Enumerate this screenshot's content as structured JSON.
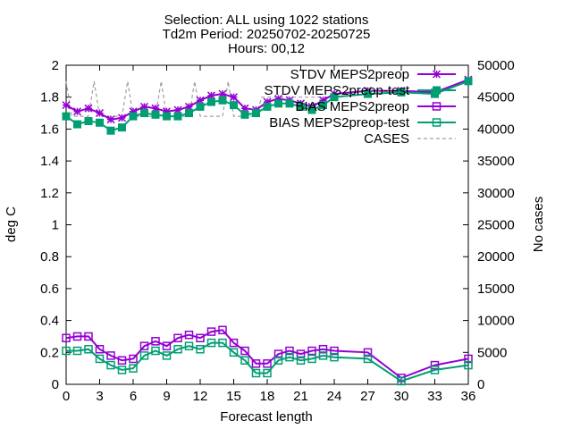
{
  "chart_data": {
    "type": "line",
    "title_lines": [
      "Selection: ALL using  1022 stations",
      "Td2m    Period: 20250702-20250725",
      "Hours: 00,12"
    ],
    "xlabel": "Forecast length",
    "ylabel": "deg C",
    "y2label": "No cases",
    "xlim": [
      0,
      36
    ],
    "ylim": [
      0,
      2
    ],
    "y2lim": [
      0,
      50000
    ],
    "xticks": [
      0,
      3,
      6,
      9,
      12,
      15,
      18,
      21,
      24,
      27,
      30,
      33,
      36
    ],
    "yticks": [
      0,
      0.2,
      0.4,
      0.6,
      0.8,
      1,
      1.2,
      1.4,
      1.6,
      1.8,
      2
    ],
    "y2ticks": [
      0,
      5000,
      10000,
      15000,
      20000,
      25000,
      30000,
      35000,
      40000,
      45000,
      50000
    ],
    "legend_position": "top-right",
    "grid": false,
    "x": [
      0,
      1,
      2,
      3,
      4,
      5,
      6,
      7,
      8,
      9,
      10,
      11,
      12,
      13,
      14,
      15,
      16,
      17,
      18,
      19,
      20,
      21,
      22,
      23,
      24,
      27,
      30,
      33,
      36
    ],
    "series": [
      {
        "name": "STDV MEPS2preop",
        "axis": "y1",
        "color": "#9400d3",
        "marker": "star",
        "values": [
          1.75,
          1.71,
          1.73,
          1.7,
          1.66,
          1.67,
          1.71,
          1.74,
          1.73,
          1.71,
          1.72,
          1.74,
          1.78,
          1.81,
          1.82,
          1.8,
          1.73,
          1.72,
          1.77,
          1.79,
          1.78,
          1.76,
          1.74,
          1.78,
          1.82,
          1.84,
          1.84,
          1.83,
          1.91
        ]
      },
      {
        "name": "STDV MEPS2preop-test",
        "axis": "y1",
        "color": "#009e73",
        "marker": "filled-square",
        "values": [
          1.68,
          1.63,
          1.65,
          1.64,
          1.59,
          1.61,
          1.68,
          1.7,
          1.69,
          1.68,
          1.68,
          1.7,
          1.74,
          1.77,
          1.78,
          1.75,
          1.69,
          1.7,
          1.74,
          1.76,
          1.76,
          1.74,
          1.72,
          1.75,
          1.8,
          1.82,
          1.83,
          1.82,
          1.9
        ]
      },
      {
        "name": "BIAS MEPS2preop",
        "axis": "y1",
        "color": "#9400d3",
        "marker": "open-square",
        "values": [
          0.29,
          0.3,
          0.3,
          0.22,
          0.18,
          0.15,
          0.16,
          0.24,
          0.27,
          0.24,
          0.29,
          0.31,
          0.29,
          0.33,
          0.34,
          0.26,
          0.21,
          0.13,
          0.13,
          0.19,
          0.21,
          0.19,
          0.21,
          0.22,
          0.21,
          0.2,
          0.04,
          0.12,
          0.16
        ]
      },
      {
        "name": "BIAS MEPS2preop-test",
        "axis": "y1",
        "color": "#009e73",
        "marker": "open-square",
        "values": [
          0.21,
          0.21,
          0.22,
          0.16,
          0.12,
          0.09,
          0.1,
          0.18,
          0.21,
          0.18,
          0.22,
          0.24,
          0.22,
          0.26,
          0.26,
          0.2,
          0.15,
          0.07,
          0.07,
          0.15,
          0.17,
          0.15,
          0.16,
          0.18,
          0.17,
          0.16,
          0.02,
          0.09,
          0.12
        ]
      },
      {
        "name": "CASES",
        "axis": "y2",
        "color": "#a0a0a0",
        "marker": "none",
        "dash": true,
        "x": [
          0,
          0.5,
          1,
          1.5,
          2,
          2.5,
          3,
          3.5,
          4,
          4.5,
          5,
          5.5,
          6,
          6.5,
          7,
          7.5,
          8,
          8.5,
          9,
          9.5,
          10,
          10.5,
          11,
          11.5,
          12,
          12.5,
          13,
          13.5,
          14,
          14.5,
          15,
          15.5,
          16,
          16.5,
          17,
          17.5,
          18,
          18.5,
          19,
          19.5,
          20,
          20.5,
          21,
          21.5,
          22,
          22.5,
          23,
          23.5,
          24
        ],
        "values": [
          47500,
          42000,
          42000,
          42000,
          42000,
          47500,
          42000,
          42000,
          42000,
          42000,
          42000,
          47500,
          42000,
          42000,
          42000,
          42000,
          42000,
          47500,
          42000,
          42000,
          42000,
          42000,
          42000,
          47500,
          42000,
          42000,
          42000,
          42000,
          42000,
          47500,
          42000,
          42000,
          42000,
          42000,
          42000,
          45000,
          45000,
          45000,
          45000,
          45000,
          45000,
          45000,
          45000,
          45000,
          45000,
          45000,
          45000,
          45000,
          45000
        ]
      }
    ]
  }
}
